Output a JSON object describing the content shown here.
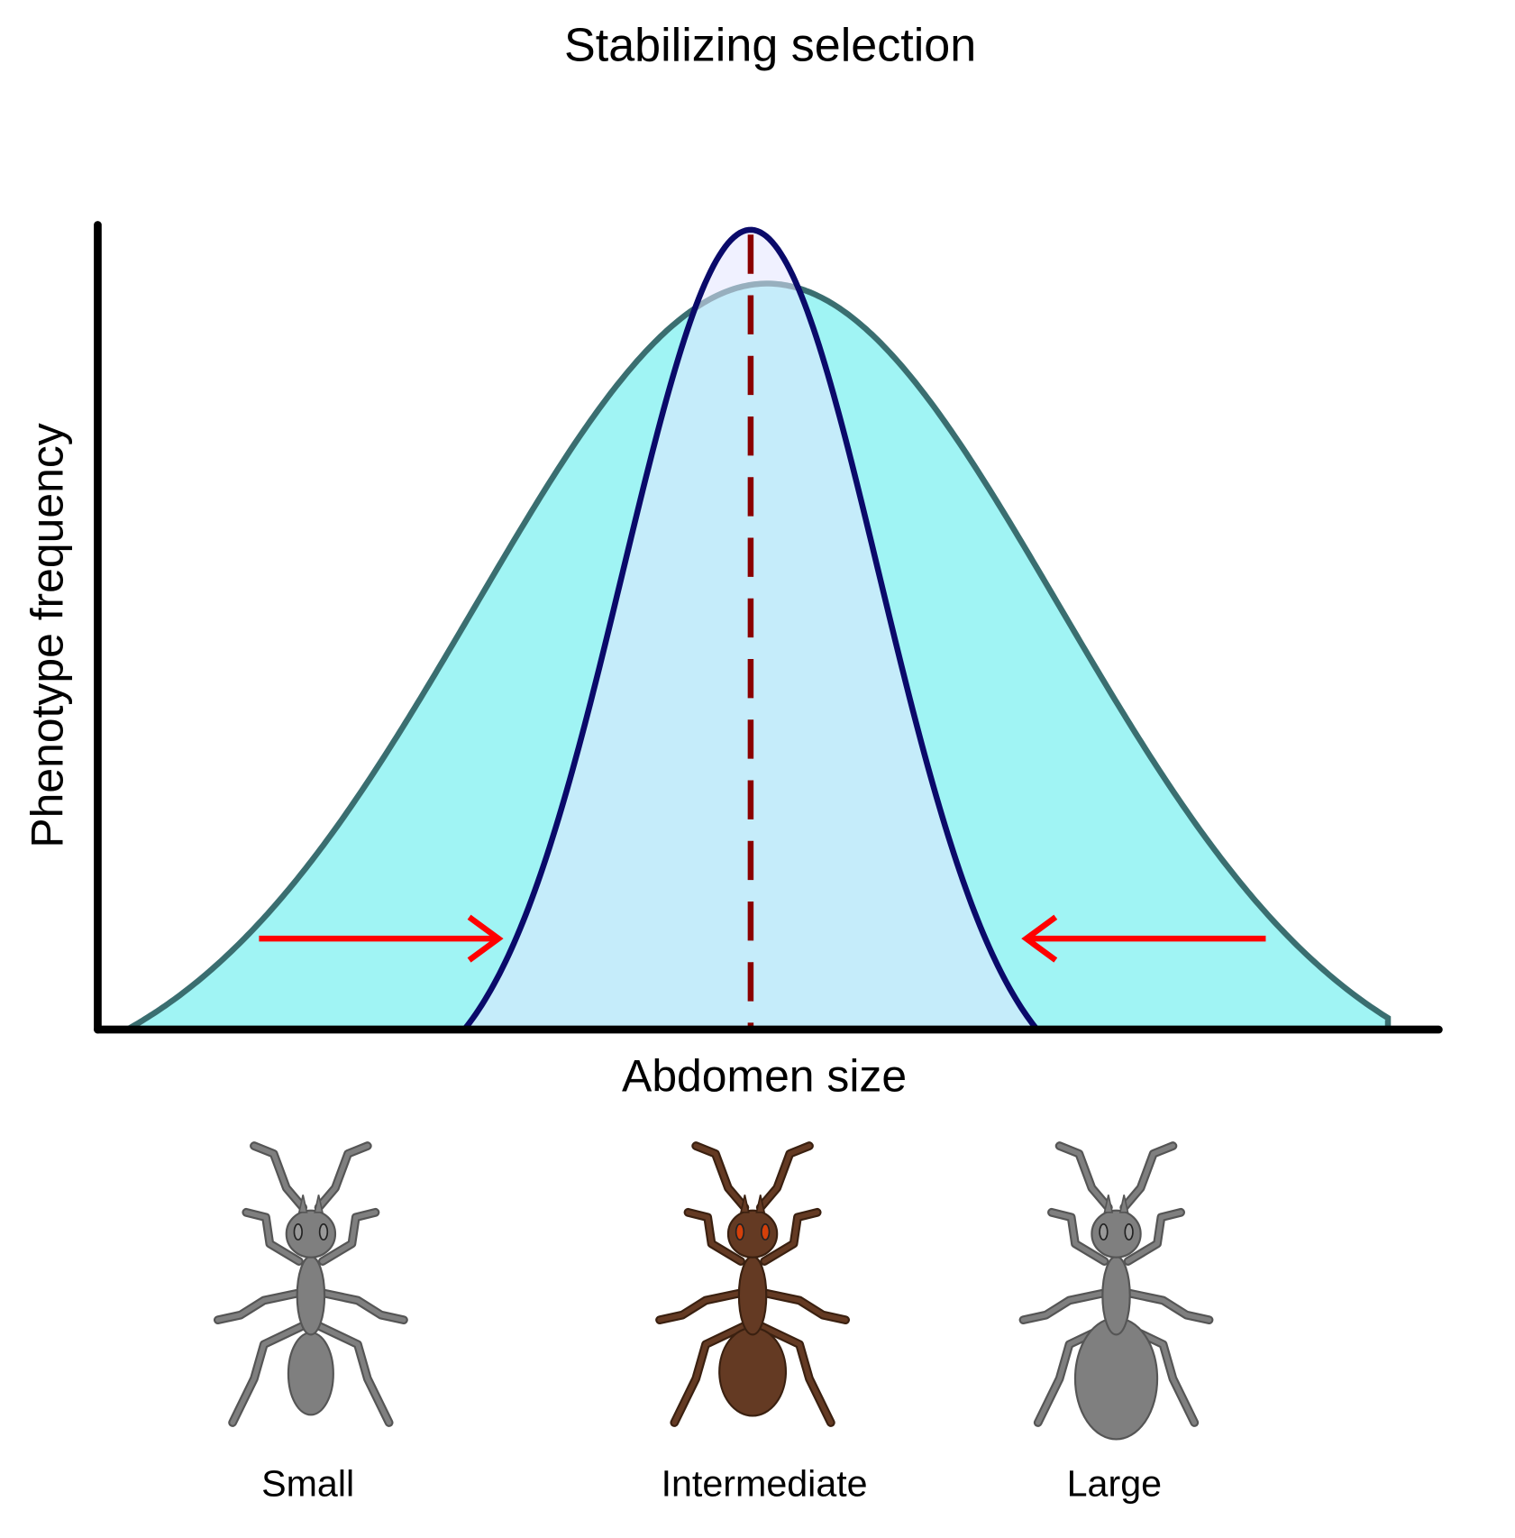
{
  "title": "Stabilizing selection",
  "axes": {
    "y_label": "Phenotype frequency",
    "x_label": "Abdomen size"
  },
  "ants": [
    {
      "label": "Small"
    },
    {
      "label": "Intermediate"
    },
    {
      "label": "Large"
    }
  ]
}
